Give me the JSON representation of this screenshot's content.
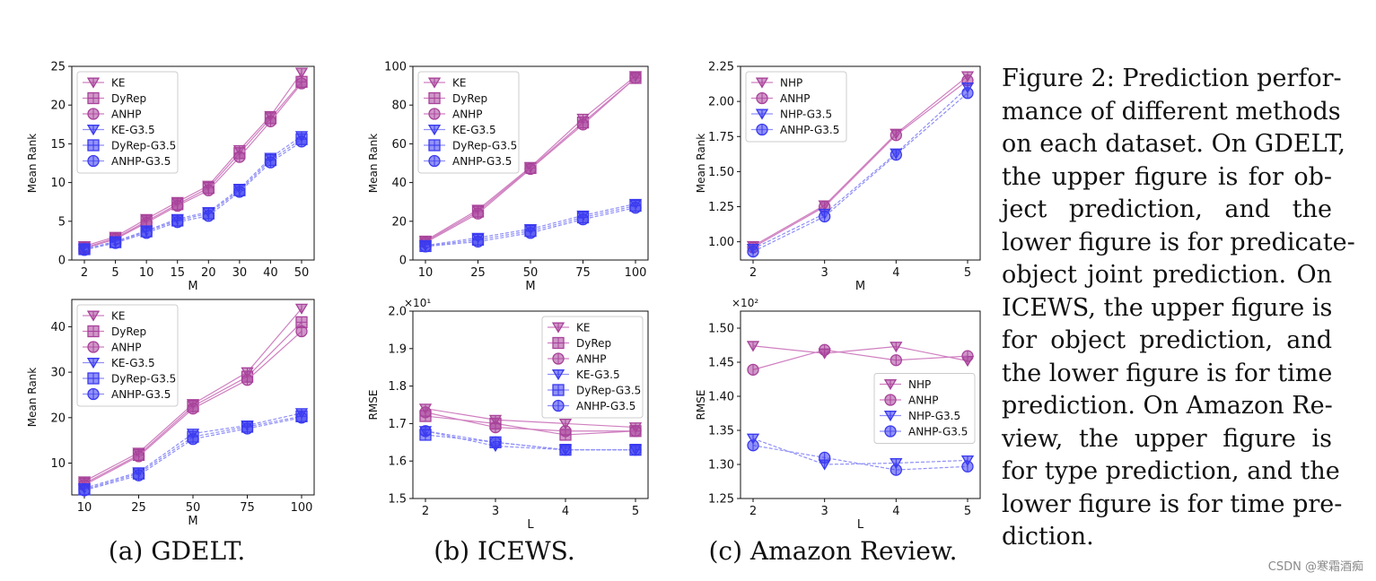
{
  "caption": {
    "lines": [
      "Figure 2: Prediction perfor-",
      "mance of different methods",
      "on each dataset. On GDELT,",
      "the upper figure is for ob-",
      "ject prediction, and the",
      "lower figure is for predicate-",
      "object joint prediction. On",
      "ICEWS, the upper figure is",
      "for object prediction, and",
      "the lower figure is for time",
      "prediction. On Amazon Re-",
      "view, the upper figure is",
      "for type prediction, and the",
      "lower figure is for time pre-",
      "diction."
    ]
  },
  "subcaptions": [
    "(a) GDELT.",
    "(b) ICEWS.",
    "(c) Amazon Review."
  ],
  "watermark": "CSDN @寒霜酒痴",
  "colors": {
    "pink": "#a8429a",
    "pink_light": "#cf7fc0",
    "blue": "#3a3af0",
    "blue_light": "#8f8ff7"
  },
  "chart_data": [
    {
      "type": "line",
      "id": "gdelt-top",
      "xlabel": "M",
      "ylabel": "Mean Rank",
      "categories": [
        "2",
        "5",
        "10",
        "15",
        "20",
        "30",
        "40",
        "50"
      ],
      "ylim": [
        0,
        25
      ],
      "yticks": [
        "0",
        "5",
        "10",
        "15",
        "20",
        "25"
      ],
      "legend": "top-left",
      "series": [
        {
          "name": "KE",
          "marker": "tri",
          "color": "pink",
          "values": [
            1.8,
            3.0,
            5.3,
            7.5,
            9.6,
            14.2,
            18.6,
            24.2
          ]
        },
        {
          "name": "DyRep",
          "marker": "square",
          "color": "pink",
          "values": [
            1.6,
            2.8,
            5.0,
            7.2,
            9.3,
            13.8,
            18.3,
            23.0
          ]
        },
        {
          "name": "ANHP",
          "marker": "circle",
          "color": "pink",
          "values": [
            1.5,
            2.7,
            4.8,
            7.0,
            9.0,
            13.3,
            17.9,
            22.8
          ]
        },
        {
          "name": "KE-G3.5",
          "marker": "tri",
          "color": "blue",
          "values": [
            1.4,
            2.4,
            3.8,
            5.3,
            6.2,
            9.2,
            13.2,
            16.0
          ]
        },
        {
          "name": "DyRep-G3.5",
          "marker": "square",
          "color": "blue",
          "values": [
            1.4,
            2.3,
            3.7,
            5.1,
            6.0,
            9.0,
            12.9,
            15.6
          ]
        },
        {
          "name": "ANHP-G3.5",
          "marker": "circle",
          "color": "blue",
          "values": [
            1.3,
            2.2,
            3.5,
            4.9,
            5.7,
            8.8,
            12.6,
            15.3
          ]
        }
      ]
    },
    {
      "type": "line",
      "id": "gdelt-bottom",
      "xlabel": "M",
      "ylabel": "Mean Rank",
      "categories": [
        "10",
        "25",
        "50",
        "75",
        "100"
      ],
      "ylim": [
        3,
        46
      ],
      "yticks": [
        "10",
        "20",
        "30",
        "40"
      ],
      "legend": "top-left",
      "series": [
        {
          "name": "KE",
          "marker": "tri",
          "color": "pink",
          "values": [
            6.0,
            12.3,
            23.0,
            30.0,
            44.0
          ]
        },
        {
          "name": "DyRep",
          "marker": "square",
          "color": "pink",
          "values": [
            5.5,
            11.8,
            22.5,
            29.0,
            41.0
          ]
        },
        {
          "name": "ANHP",
          "marker": "circle",
          "color": "pink",
          "values": [
            5.2,
            11.5,
            22.0,
            28.3,
            39.0
          ]
        },
        {
          "name": "KE-G3.5",
          "marker": "tri",
          "color": "blue",
          "values": [
            4.5,
            8.0,
            16.5,
            18.3,
            21.0
          ]
        },
        {
          "name": "DyRep-G3.5",
          "marker": "square",
          "color": "blue",
          "values": [
            4.2,
            7.7,
            15.8,
            18.0,
            20.3
          ]
        },
        {
          "name": "ANHP-G3.5",
          "marker": "circle",
          "color": "blue",
          "values": [
            4.0,
            7.3,
            15.3,
            17.6,
            20.0
          ]
        }
      ]
    },
    {
      "type": "line",
      "id": "icews-top",
      "xlabel": "M",
      "ylabel": "Mean Rank",
      "categories": [
        "10",
        "25",
        "50",
        "75",
        "100"
      ],
      "ylim": [
        0,
        100
      ],
      "yticks": [
        "0",
        "20",
        "40",
        "60",
        "80",
        "100"
      ],
      "legend": "top-left",
      "series": [
        {
          "name": "KE",
          "marker": "tri",
          "color": "pink",
          "values": [
            10,
            26,
            48,
            73,
            95
          ]
        },
        {
          "name": "DyRep",
          "marker": "square",
          "color": "pink",
          "values": [
            9.5,
            25,
            47.5,
            71,
            94
          ]
        },
        {
          "name": "ANHP",
          "marker": "circle",
          "color": "pink",
          "values": [
            9,
            24,
            47,
            70,
            94
          ]
        },
        {
          "name": "KE-G3.5",
          "marker": "tri",
          "color": "blue",
          "values": [
            7.5,
            11.5,
            16,
            23,
            29
          ]
        },
        {
          "name": "DyRep-G3.5",
          "marker": "square",
          "color": "blue",
          "values": [
            7.2,
            10.5,
            15,
            22,
            28
          ]
        },
        {
          "name": "ANHP-G3.5",
          "marker": "circle",
          "color": "blue",
          "values": [
            7,
            9.5,
            14,
            21,
            27
          ]
        }
      ]
    },
    {
      "type": "line",
      "id": "icews-bottom",
      "xlabel": "L",
      "ylabel": "RMSE",
      "scale_label": "×10¹",
      "categories": [
        "2",
        "3",
        "4",
        "5"
      ],
      "ylim": [
        1.5,
        2.0
      ],
      "yticks": [
        "1.5",
        "1.6",
        "1.7",
        "1.8",
        "1.9",
        "2.0"
      ],
      "legend": "top-right",
      "series": [
        {
          "name": "KE",
          "marker": "tri",
          "color": "pink",
          "values": [
            1.74,
            1.71,
            1.7,
            1.69
          ]
        },
        {
          "name": "DyRep",
          "marker": "square",
          "color": "pink",
          "values": [
            1.72,
            1.7,
            1.67,
            1.68
          ]
        },
        {
          "name": "ANHP",
          "marker": "circle",
          "color": "pink",
          "values": [
            1.73,
            1.69,
            1.68,
            1.68
          ]
        },
        {
          "name": "KE-G3.5",
          "marker": "tri",
          "color": "blue",
          "values": [
            1.68,
            1.64,
            1.63,
            1.63
          ]
        },
        {
          "name": "DyRep-G3.5",
          "marker": "square",
          "color": "blue",
          "values": [
            1.67,
            1.65,
            1.63,
            1.63
          ]
        },
        {
          "name": "ANHP-G3.5",
          "marker": "circle",
          "color": "blue",
          "values": [
            1.68,
            1.65,
            1.63,
            1.63
          ]
        }
      ]
    },
    {
      "type": "line",
      "id": "amazon-top",
      "xlabel": "M",
      "ylabel": "Mean Rank",
      "categories": [
        "2",
        "3",
        "4",
        "5"
      ],
      "ylim": [
        0.87,
        2.25
      ],
      "yticks": [
        "1.00",
        "1.25",
        "1.50",
        "1.75",
        "2.00",
        "2.25"
      ],
      "legend": "top-left",
      "series": [
        {
          "name": "NHP",
          "marker": "tri",
          "color": "pink",
          "values": [
            0.97,
            1.26,
            1.77,
            2.18
          ]
        },
        {
          "name": "ANHP",
          "marker": "circle",
          "color": "pink",
          "values": [
            0.96,
            1.25,
            1.76,
            2.15
          ]
        },
        {
          "name": "NHP-G3.5",
          "marker": "tri",
          "color": "blue",
          "values": [
            0.95,
            1.2,
            1.63,
            2.1
          ]
        },
        {
          "name": "ANHP-G3.5",
          "marker": "circle",
          "color": "blue",
          "values": [
            0.93,
            1.18,
            1.62,
            2.06
          ]
        }
      ]
    },
    {
      "type": "line",
      "id": "amazon-bottom",
      "xlabel": "L",
      "ylabel": "RMSE",
      "scale_label": "×10²",
      "categories": [
        "2",
        "3",
        "4",
        "5"
      ],
      "ylim": [
        1.25,
        1.525
      ],
      "yticks": [
        "1.25",
        "1.30",
        "1.35",
        "1.40",
        "1.45",
        "1.50"
      ],
      "legend": "center-right",
      "series": [
        {
          "name": "NHP",
          "marker": "tri",
          "color": "pink",
          "values": [
            1.474,
            1.463,
            1.473,
            1.452
          ]
        },
        {
          "name": "ANHP",
          "marker": "circle",
          "color": "pink",
          "values": [
            1.439,
            1.468,
            1.453,
            1.459
          ]
        },
        {
          "name": "NHP-G3.5",
          "marker": "tri",
          "color": "blue",
          "values": [
            1.338,
            1.3,
            1.302,
            1.306
          ]
        },
        {
          "name": "ANHP-G3.5",
          "marker": "circle",
          "color": "blue",
          "values": [
            1.328,
            1.31,
            1.292,
            1.297
          ]
        }
      ]
    }
  ]
}
